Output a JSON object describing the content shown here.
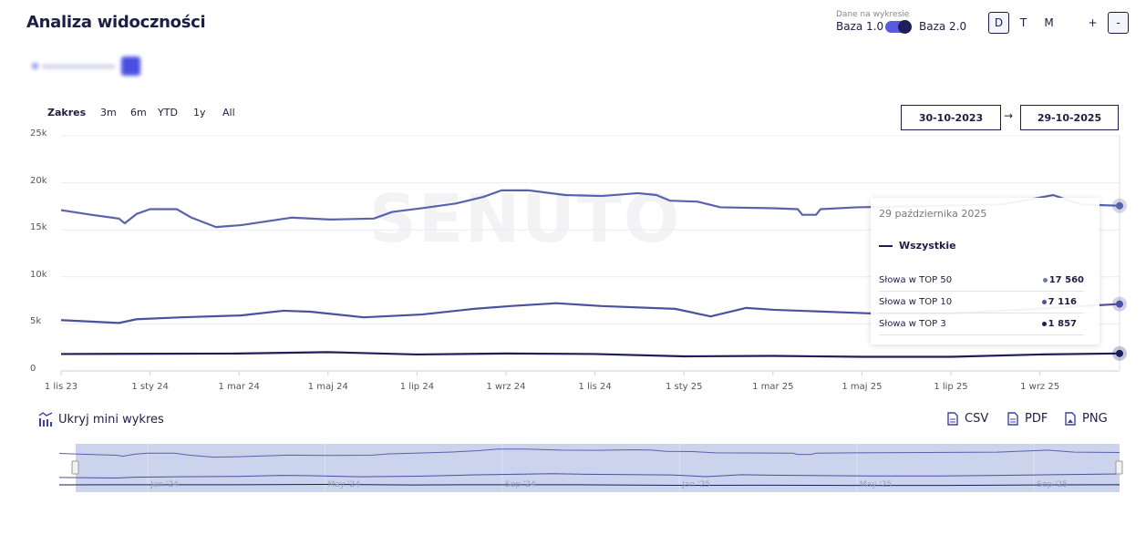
{
  "header": {
    "title": "Analiza widoczności"
  },
  "data_source": {
    "label": "Dane na wykresie",
    "option_left": "Baza 1.0",
    "option_right": "Baza 2.0",
    "selected": "Baza 2.0"
  },
  "granularity": {
    "options": [
      "D",
      "T",
      "M"
    ],
    "selected": "D"
  },
  "zoom": {
    "plus": "+",
    "minus": "-"
  },
  "range": {
    "label": "Zakres",
    "options": [
      "3m",
      "6m",
      "YTD",
      "1y",
      "All"
    ]
  },
  "dates": {
    "from": "30-10-2023",
    "arrow": "→",
    "to": "29-10-2025"
  },
  "watermark": "SENUTO",
  "tooltip": {
    "date": "29 października 2025",
    "group": "Wszystkie",
    "rows": [
      {
        "label": "Słowa w TOP 50",
        "value": "17 560",
        "color": "#6e75c0"
      },
      {
        "label": "Słowa w TOP 10",
        "value": "7 116",
        "color": "#4a519e"
      },
      {
        "label": "Słowa w TOP 3",
        "value": "1 857",
        "color": "#1d1e5a"
      }
    ]
  },
  "footer": {
    "toggle_mini": "Ukryj mini wykres",
    "csv": "CSV",
    "pdf": "PDF",
    "png": "PNG"
  },
  "navigator": {
    "labels": [
      "Jan '24",
      "May '24",
      "Sep '24",
      "Jan '25",
      "May '25",
      "Sep '25"
    ]
  },
  "chart_data": {
    "type": "line",
    "x_unit": "months since 1 Nov 2023",
    "ylim": [
      0,
      25000
    ],
    "yticks": [
      "0",
      "5k",
      "10k",
      "15k",
      "20k",
      "25k"
    ],
    "xticks": [
      "1 lis 23",
      "1 sty 24",
      "1 mar 24",
      "1 maj 24",
      "1 lip 24",
      "1 wrz 24",
      "1 lis 24",
      "1 sty 25",
      "1 mar 25",
      "1 maj 25",
      "1 lip 25",
      "1 wrz 25"
    ],
    "xlim": [
      0,
      23.93
    ],
    "series": [
      {
        "name": "Słowa w TOP 50",
        "color": "#5a62ad",
        "x": [
          0,
          0.68,
          1.3,
          1.43,
          1.7,
          2.0,
          2.6,
          2.93,
          3.48,
          4.04,
          5.18,
          6.05,
          7.03,
          7.44,
          8.11,
          8.87,
          9.49,
          9.9,
          10.51,
          11.33,
          12.15,
          12.97,
          13.38,
          13.69,
          14.3,
          14.82,
          16.02,
          16.56,
          16.66,
          16.97,
          17.07,
          17.89,
          19.12,
          21.17,
          22.3,
          22.91,
          23.93
        ],
        "y": [
          17100,
          16600,
          16200,
          15700,
          16700,
          17200,
          17200,
          16300,
          15300,
          15500,
          16300,
          16100,
          16200,
          16900,
          17300,
          17800,
          18500,
          19200,
          19200,
          18700,
          18600,
          18900,
          18700,
          18100,
          18000,
          17400,
          17300,
          17200,
          16600,
          16600,
          17200,
          17400,
          17500,
          17700,
          18700,
          17700,
          17560
        ]
      },
      {
        "name": "Słowa w TOP 10",
        "color": "#4a519e",
        "x": [
          0,
          1.3,
          1.7,
          2.7,
          4.04,
          5.0,
          5.6,
          6.8,
          8.11,
          9.28,
          10.1,
          11.13,
          12.15,
          13.8,
          14.6,
          15.4,
          16.02,
          18.3,
          19.9,
          21.17,
          23.93
        ],
        "y": [
          5400,
          5100,
          5500,
          5700,
          5900,
          6400,
          6300,
          5700,
          6000,
          6600,
          6900,
          7200,
          6900,
          6600,
          5800,
          6700,
          6500,
          6100,
          6100,
          6400,
          7116
        ]
      },
      {
        "name": "Słowa w TOP 3",
        "color": "#1d1e5a",
        "x": [
          0,
          4,
          6,
          8,
          10,
          12,
          14,
          16,
          18,
          20,
          22,
          23.93
        ],
        "y": [
          1800,
          1850,
          2000,
          1750,
          1850,
          1800,
          1550,
          1600,
          1500,
          1500,
          1750,
          1857
        ]
      }
    ]
  }
}
